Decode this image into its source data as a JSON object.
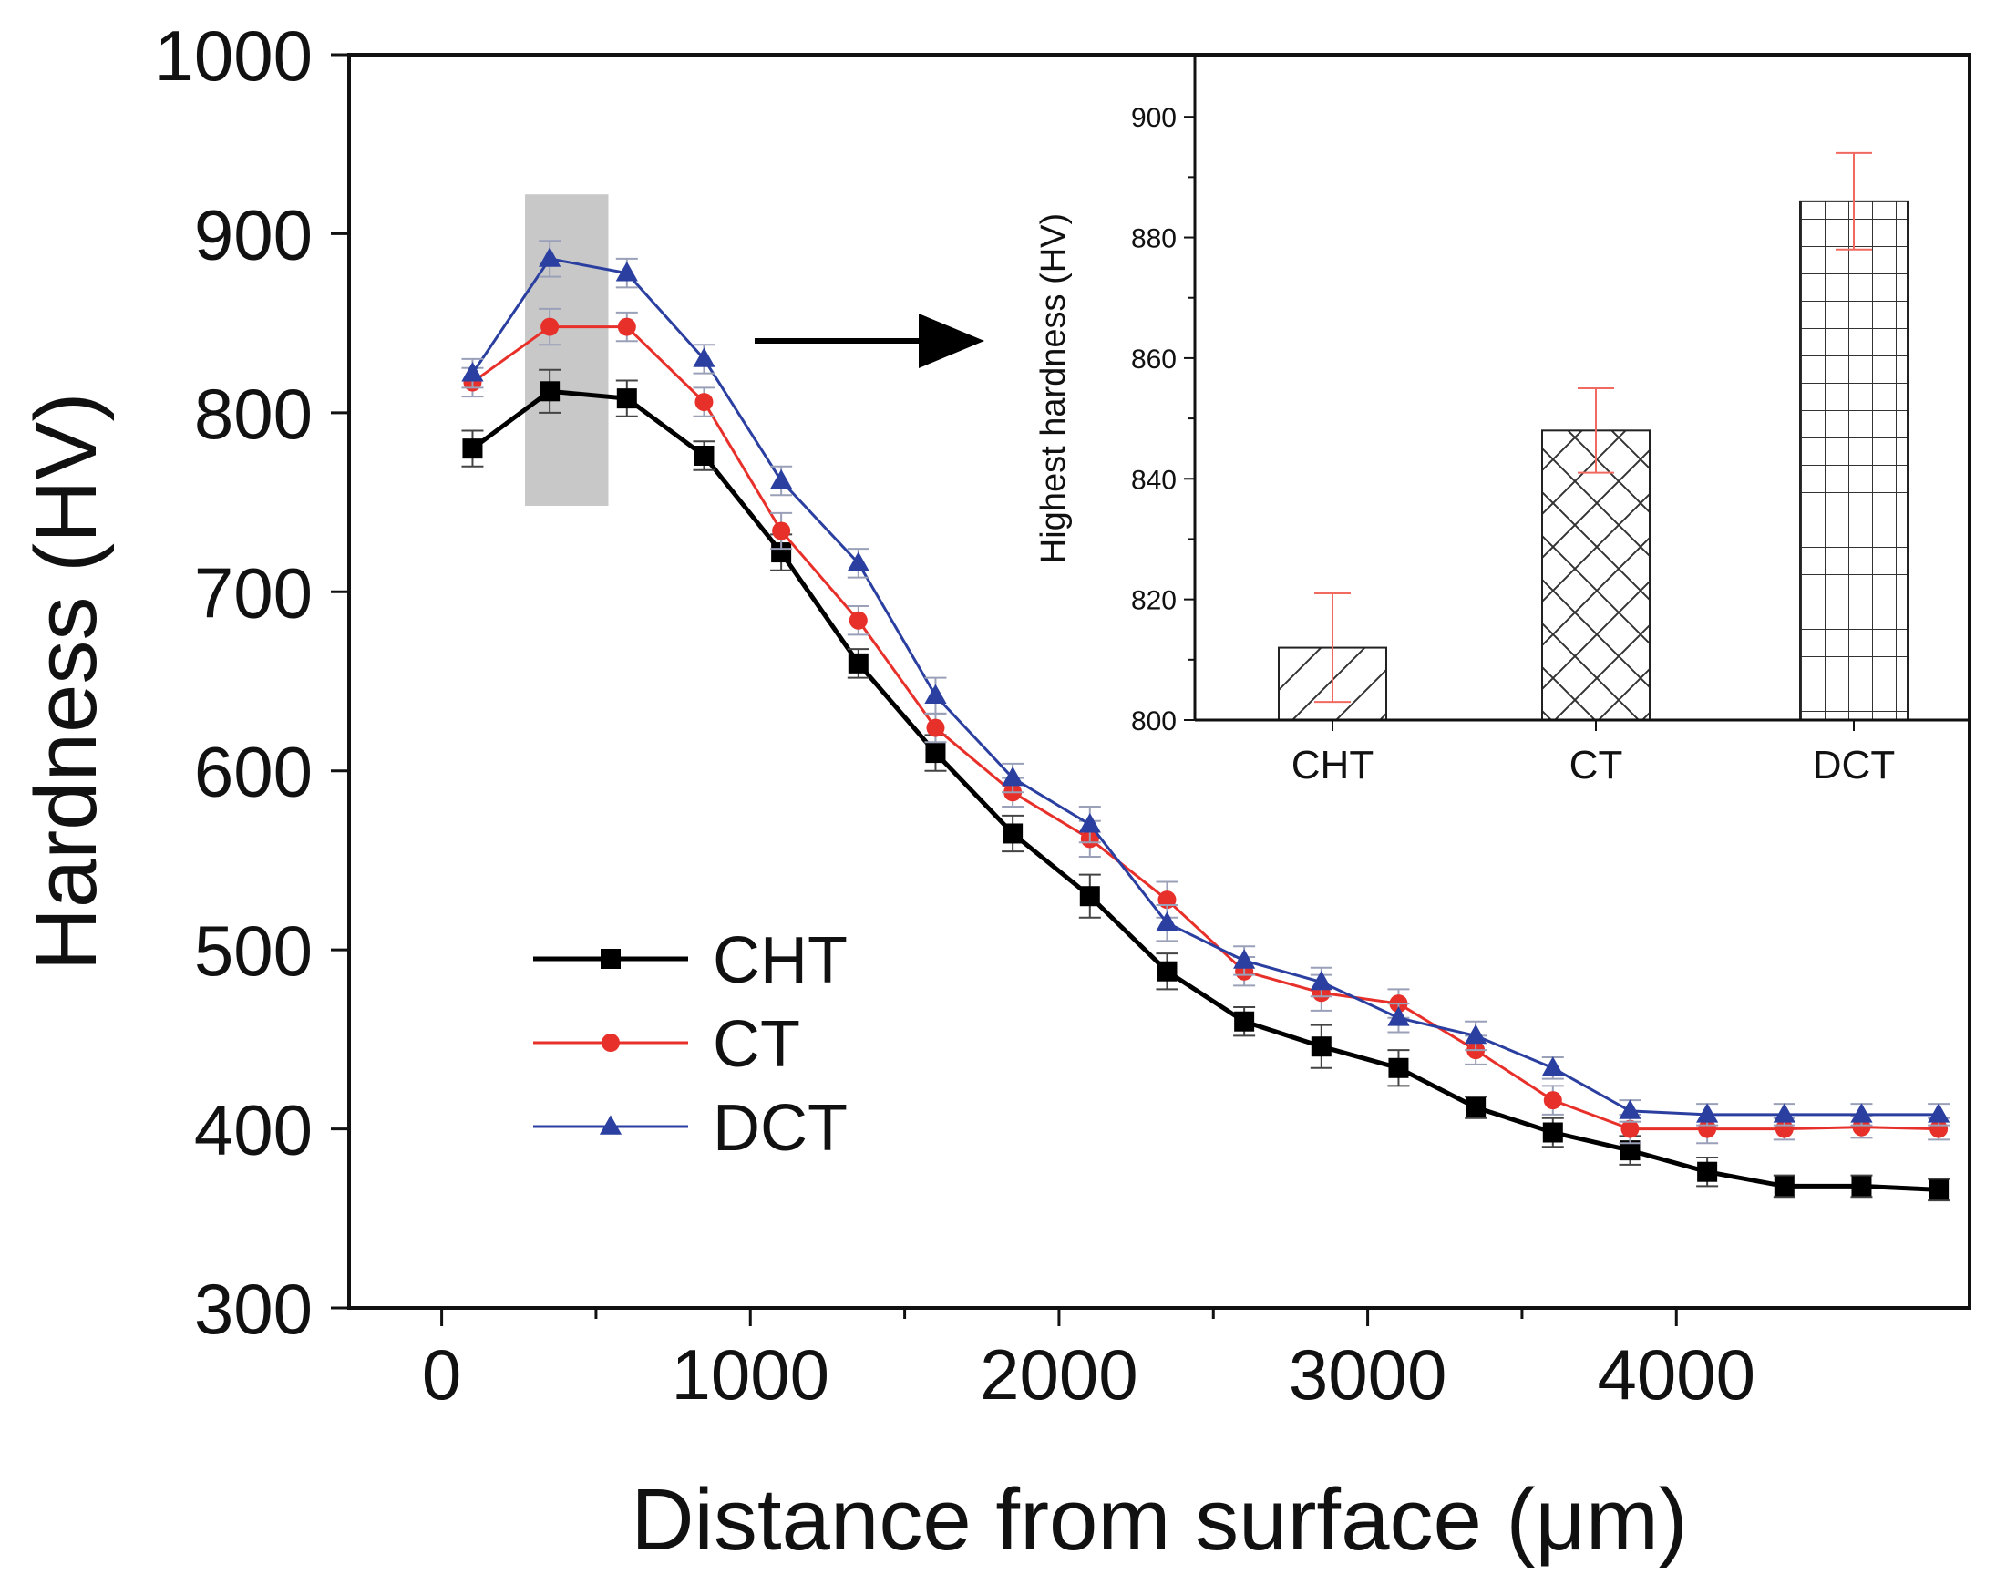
{
  "chart_data": [
    {
      "type": "line",
      "xlabel": "Distance from surface (μm)",
      "ylabel": "Hardness (HV)",
      "xlim": [
        -300,
        4950
      ],
      "ylim": [
        300,
        1000
      ],
      "x_ticks": [
        0,
        1000,
        2000,
        3000,
        4000
      ],
      "y_ticks": [
        300,
        400,
        500,
        600,
        700,
        800,
        900,
        1000
      ],
      "x_tick_labels": [
        "0",
        "1000",
        "2000",
        "3000",
        "4000"
      ],
      "y_tick_labels": [
        "300",
        "400",
        "500",
        "600",
        "700",
        "800",
        "900",
        "1000"
      ],
      "legend_position": "center-left",
      "highlight_region": {
        "x": [
          270,
          540
        ],
        "y": [
          748,
          922
        ]
      },
      "x": [
        100,
        350,
        600,
        850,
        1100,
        1350,
        1600,
        1850,
        2100,
        2350,
        2600,
        2850,
        3100,
        3350,
        3600,
        3850,
        4100,
        4350,
        4600,
        4850
      ],
      "series": [
        {
          "name": "CHT",
          "color": "#000000",
          "marker": "square",
          "values": [
            780,
            812,
            808,
            776,
            722,
            660,
            610,
            565,
            530,
            488,
            460,
            446,
            434,
            412,
            398,
            388,
            376,
            368,
            368,
            366
          ],
          "errors": [
            10,
            12,
            10,
            8,
            10,
            8,
            10,
            10,
            12,
            10,
            8,
            12,
            10,
            6,
            8,
            8,
            8,
            6,
            6,
            6
          ]
        },
        {
          "name": "CT",
          "color": "#e8302a",
          "marker": "circle",
          "values": [
            817,
            848,
            848,
            806,
            734,
            684,
            624,
            588,
            562,
            528,
            488,
            476,
            470,
            444,
            416,
            400,
            400,
            400,
            401,
            400
          ],
          "errors": [
            8,
            10,
            8,
            8,
            10,
            8,
            8,
            8,
            10,
            10,
            8,
            10,
            8,
            8,
            8,
            8,
            8,
            6,
            6,
            6
          ]
        },
        {
          "name": "DCT",
          "color": "#2a3fa0",
          "marker": "triangle",
          "values": [
            822,
            886,
            878,
            830,
            762,
            716,
            642,
            596,
            570,
            515,
            494,
            482,
            462,
            452,
            434,
            410,
            408,
            408,
            408,
            408
          ],
          "errors": [
            8,
            10,
            8,
            8,
            8,
            8,
            10,
            8,
            10,
            10,
            8,
            8,
            8,
            8,
            6,
            6,
            6,
            6,
            6,
            6
          ]
        }
      ]
    },
    {
      "type": "bar",
      "title": "",
      "xlabel": "",
      "ylabel": "Highest hardness (HV)",
      "categories": [
        "CHT",
        "CT",
        "DCT"
      ],
      "values": [
        812,
        848,
        886
      ],
      "errors": [
        9,
        7,
        8
      ],
      "ylim": [
        800,
        910
      ],
      "y_ticks": [
        800,
        820,
        840,
        860,
        880,
        900
      ],
      "y_tick_labels": [
        "800",
        "820",
        "840",
        "860",
        "880",
        "900"
      ],
      "hatch": [
        "diagonal",
        "crosshatch",
        "grid"
      ],
      "error_color": "#f06a60"
    }
  ]
}
